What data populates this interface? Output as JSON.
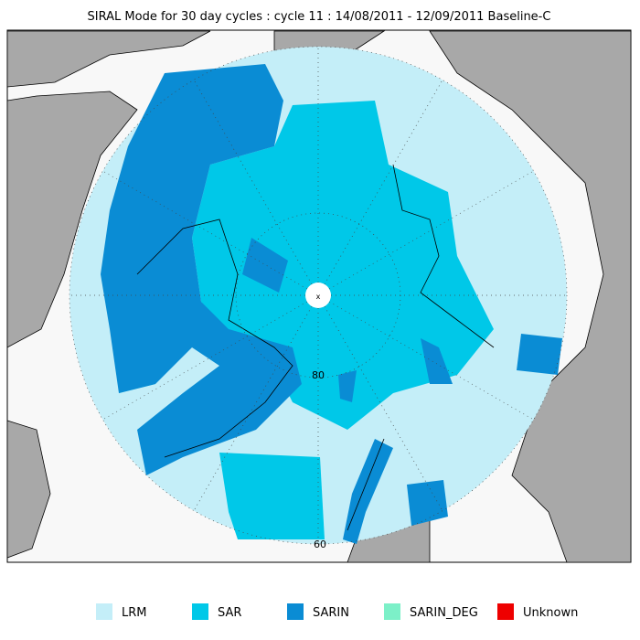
{
  "title": "SIRAL Mode for 30 day cycles : cycle 11 : 14/08/2011 - 12/09/2011 Baseline-C",
  "map": {
    "lat_labels": [
      "80",
      "60"
    ]
  },
  "legend": [
    {
      "label": "LRM",
      "color": "#c4eef8"
    },
    {
      "label": "SAR",
      "color": "#00c8e8"
    },
    {
      "label": "SARIN",
      "color": "#0a8cd4"
    },
    {
      "label": "SARIN_DEG",
      "color": "#7cf0c8"
    },
    {
      "label": "Unknown",
      "color": "#ee0000"
    }
  ]
}
